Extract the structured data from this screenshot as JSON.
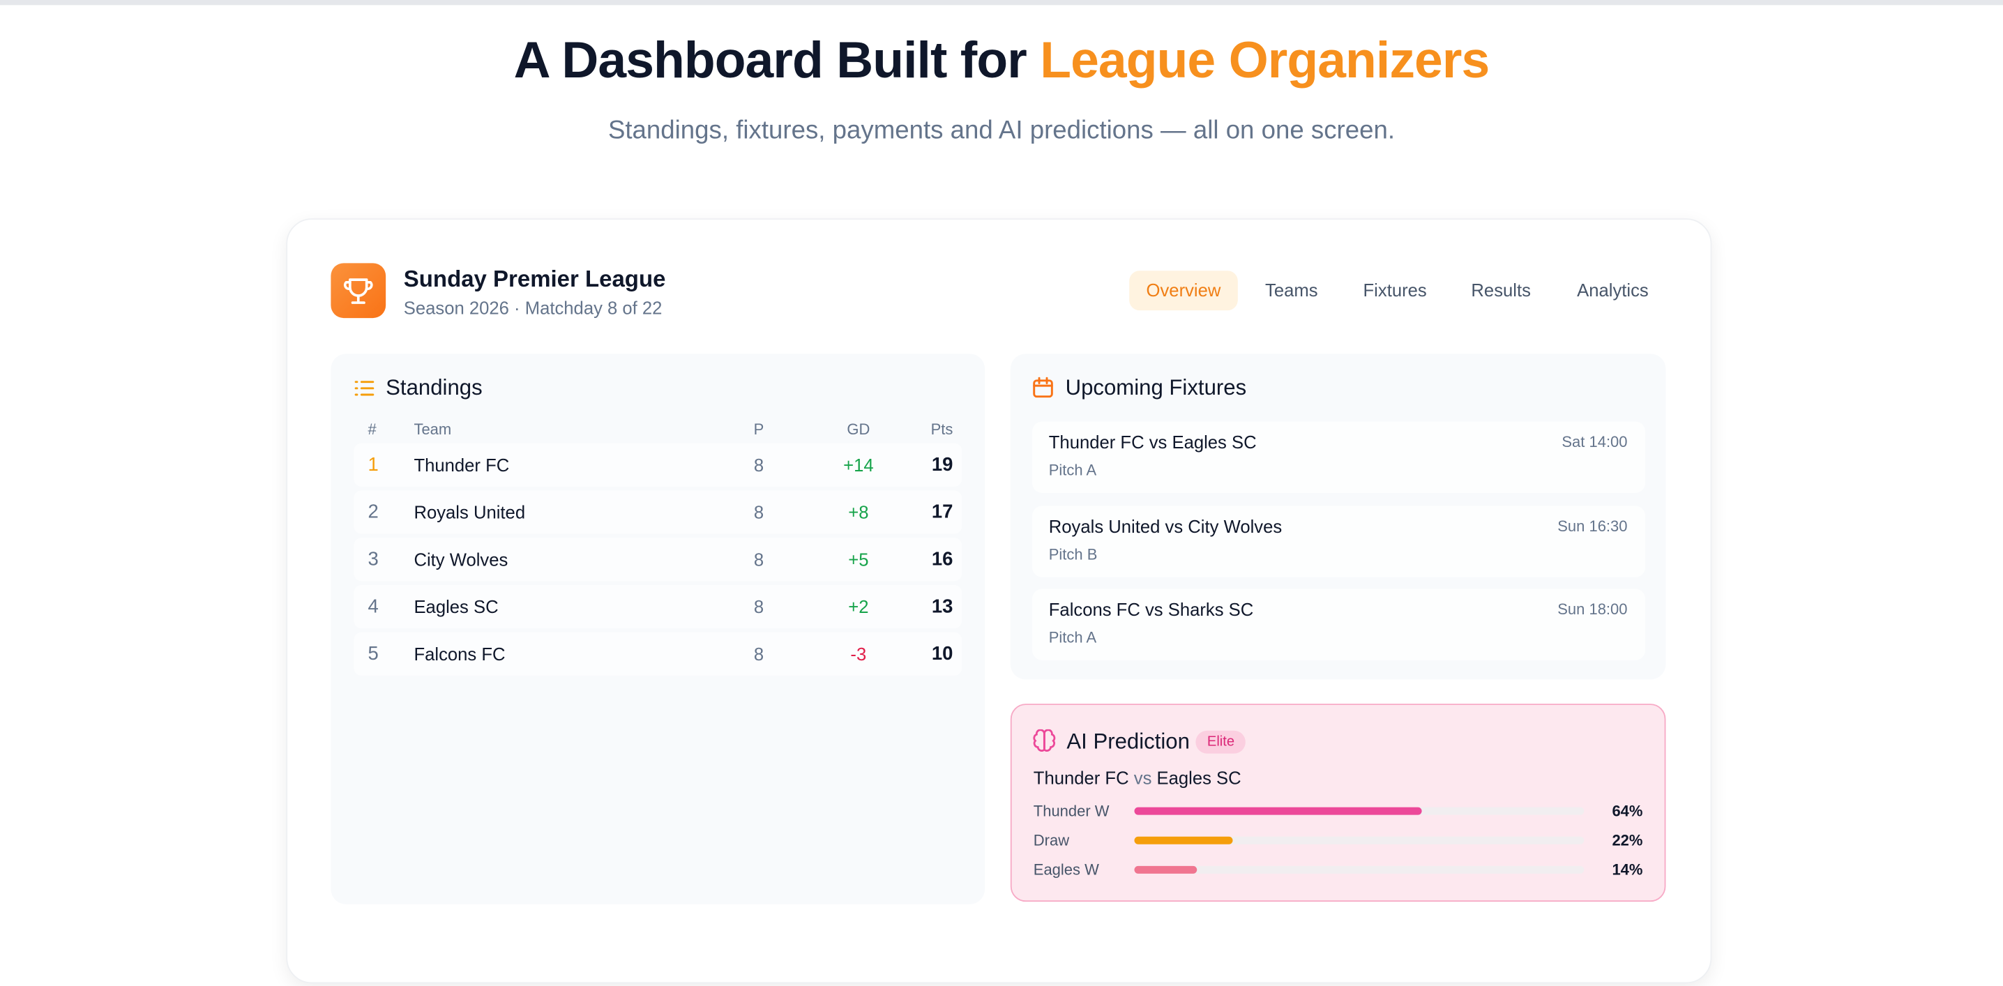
{
  "header": {
    "title": "A Dashboard Built for",
    "title_highlight": "League Organizers",
    "subtitle": "Standings, fixtures, payments and AI predictions — all on one screen."
  },
  "dashboard": {
    "league": "Sunday Premier League",
    "season": "Season 2026 · Matchday 8 of 22",
    "tabs": [
      "Overview",
      "Teams",
      "Fixtures",
      "Results",
      "Analytics"
    ],
    "active_tab": 0,
    "standings": {
      "title": "Standings",
      "columns": [
        "#",
        "Team",
        "P",
        "GD",
        "Pts"
      ],
      "rows": [
        [
          1,
          "Thunder FC",
          8,
          "+14",
          19
        ],
        [
          2,
          "Royals United",
          8,
          "+8",
          17
        ],
        [
          3,
          "City Wolves",
          8,
          "+5",
          16
        ],
        [
          4,
          "Eagles SC",
          8,
          "+2",
          13
        ],
        [
          5,
          "Falcons FC",
          8,
          "-3",
          10
        ]
      ]
    },
    "fixtures": {
      "title": "Upcoming Fixtures",
      "items": [
        {
          "match": "Thunder FC vs Eagles SC",
          "time": "Sat 14:00",
          "venue": "Pitch A"
        },
        {
          "match": "Royals United vs City Wolves",
          "time": "Sun 16:30",
          "venue": "Pitch B"
        },
        {
          "match": "Falcons FC vs Sharks SC",
          "time": "Sun 18:00",
          "venue": "Pitch A"
        }
      ]
    },
    "prediction": {
      "title": "AI Prediction",
      "badge": "Elite",
      "home": "Thunder FC",
      "vs": "vs",
      "away": "Eagles SC",
      "labels": [
        "Thunder W",
        "Draw",
        "Eagles W"
      ],
      "values": [
        64,
        22,
        14
      ],
      "value_labels": [
        "64%",
        "22%",
        "14%"
      ],
      "colors": [
        "#ec4899",
        "#f59e0b",
        "#f07590"
      ]
    }
  }
}
